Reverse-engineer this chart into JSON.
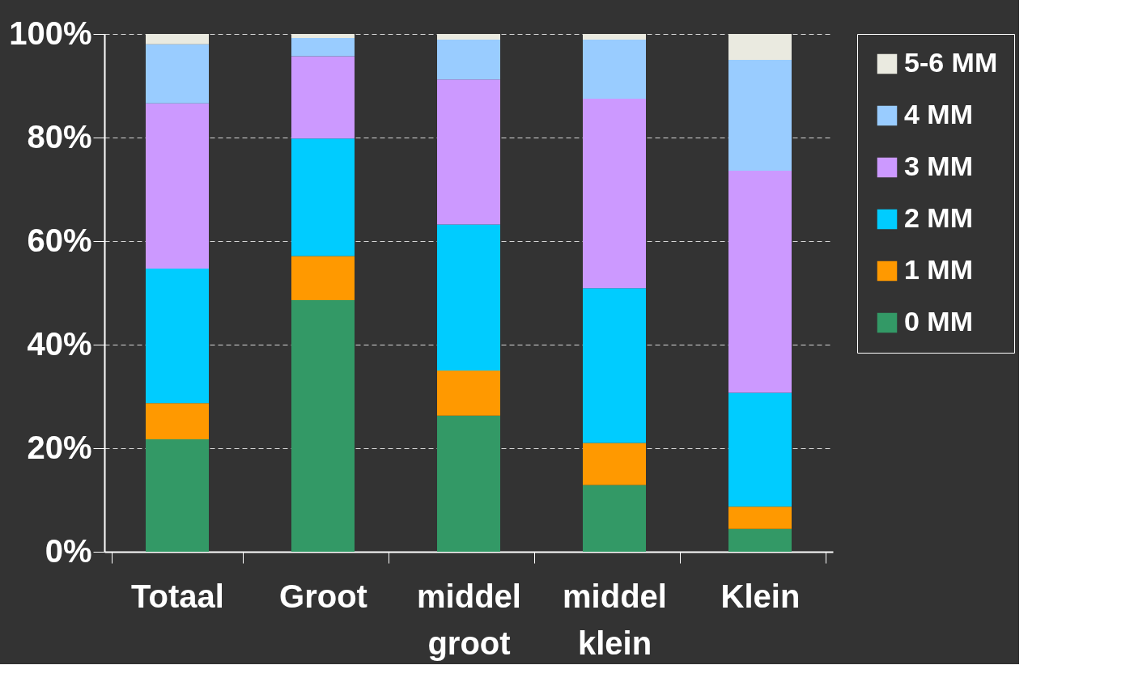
{
  "chart_data": {
    "type": "bar",
    "stacked": true,
    "categories": [
      "Totaal",
      "Groot",
      "middel groot",
      "middel klein",
      "Klein"
    ],
    "series": [
      {
        "name": "0 MM",
        "color": "#339966",
        "values": [
          21.7,
          48.6,
          26.3,
          12.9,
          4.4
        ]
      },
      {
        "name": "1 MM",
        "color": "#ff9900",
        "values": [
          7,
          8.5,
          8.7,
          8.1,
          4.3
        ]
      },
      {
        "name": "2 MM",
        "color": "#00ccff",
        "values": [
          26,
          22.7,
          28.2,
          29.9,
          22
        ]
      },
      {
        "name": "3 MM",
        "color": "#cc99ff",
        "values": [
          31.9,
          15.9,
          28,
          36.6,
          42.9
        ]
      },
      {
        "name": "4 MM",
        "color": "#99ccff",
        "values": [
          11.4,
          3.5,
          7.7,
          11.4,
          21.4
        ]
      },
      {
        "name": "5-6 MM",
        "color": "#eaeae0",
        "values": [
          2,
          0.8,
          1.1,
          1.1,
          5
        ]
      }
    ],
    "ylim": [
      0,
      100
    ],
    "yticks": [
      {
        "value": 0,
        "label": "0%"
      },
      {
        "value": 20,
        "label": "20%"
      },
      {
        "value": 40,
        "label": "40%"
      },
      {
        "value": 60,
        "label": "60%"
      },
      {
        "value": 80,
        "label": "80%"
      },
      {
        "value": 100,
        "label": "100%"
      }
    ],
    "grid": "y",
    "legend": "right"
  }
}
